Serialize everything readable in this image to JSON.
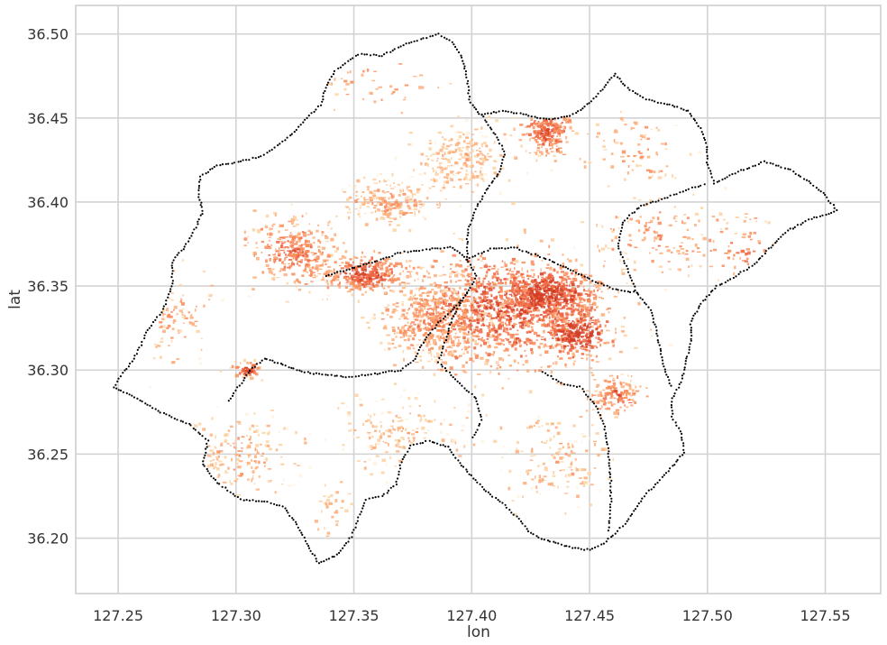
{
  "chart_data": {
    "type": "scatter",
    "title": "",
    "xlabel": "lon",
    "ylabel": "lat",
    "xlim": [
      127.232,
      127.5735
    ],
    "ylim": [
      36.167,
      36.517
    ],
    "grid": true,
    "legend": "none",
    "x_ticks": [
      {
        "value": 127.25,
        "label": "127.25"
      },
      {
        "value": 127.3,
        "label": "127.30"
      },
      {
        "value": 127.35,
        "label": "127.35"
      },
      {
        "value": 127.4,
        "label": "127.40"
      },
      {
        "value": 127.45,
        "label": "127.45"
      },
      {
        "value": 127.5,
        "label": "127.50"
      },
      {
        "value": 127.55,
        "label": "127.55"
      }
    ],
    "y_ticks": [
      {
        "value": 36.2,
        "label": "36.20"
      },
      {
        "value": 36.25,
        "label": "36.25"
      },
      {
        "value": 36.3,
        "label": "36.30"
      },
      {
        "value": 36.35,
        "label": "36.35"
      },
      {
        "value": 36.4,
        "label": "36.40"
      },
      {
        "value": 36.45,
        "label": "36.45"
      },
      {
        "value": 36.5,
        "label": "36.50"
      }
    ],
    "boundary": {
      "color": "#000000",
      "outline": [
        [
          127.386,
          36.5
        ],
        [
          127.372,
          36.494
        ],
        [
          127.362,
          36.487
        ],
        [
          127.352,
          36.488
        ],
        [
          127.342,
          36.478
        ],
        [
          127.338,
          36.468
        ],
        [
          127.336,
          36.458
        ],
        [
          127.33,
          36.45
        ],
        [
          127.322,
          36.438
        ],
        [
          127.312,
          36.428
        ],
        [
          127.302,
          36.424
        ],
        [
          127.292,
          36.422
        ],
        [
          127.285,
          36.415
        ],
        [
          127.284,
          36.405
        ],
        [
          127.286,
          36.395
        ],
        [
          127.283,
          36.385
        ],
        [
          127.279,
          36.375
        ],
        [
          127.273,
          36.364
        ],
        [
          127.273,
          36.35
        ],
        [
          127.269,
          36.336
        ],
        [
          127.262,
          36.322
        ],
        [
          127.258,
          36.31
        ],
        [
          127.252,
          36.298
        ],
        [
          127.248,
          36.29
        ],
        [
          127.258,
          36.283
        ],
        [
          127.268,
          36.275
        ],
        [
          127.28,
          36.268
        ],
        [
          127.288,
          36.258
        ],
        [
          127.286,
          36.244
        ],
        [
          127.292,
          36.233
        ],
        [
          127.302,
          36.223
        ],
        [
          127.312,
          36.222
        ],
        [
          127.32,
          36.219
        ],
        [
          127.326,
          36.208
        ],
        [
          127.33,
          36.197
        ],
        [
          127.335,
          36.185
        ],
        [
          127.343,
          36.19
        ],
        [
          127.349,
          36.201
        ],
        [
          127.352,
          36.212
        ],
        [
          127.355,
          36.223
        ],
        [
          127.362,
          36.225
        ],
        [
          127.368,
          36.232
        ],
        [
          127.37,
          36.245
        ],
        [
          127.374,
          36.255
        ],
        [
          127.382,
          36.258
        ],
        [
          127.39,
          36.254
        ],
        [
          127.394,
          36.246
        ],
        [
          127.4,
          36.237
        ],
        [
          127.406,
          36.228
        ],
        [
          127.412,
          36.222
        ],
        [
          127.419,
          36.213
        ],
        [
          127.425,
          36.203
        ],
        [
          127.431,
          36.199
        ],
        [
          127.438,
          36.196
        ],
        [
          127.444,
          36.194
        ],
        [
          127.45,
          36.193
        ],
        [
          127.456,
          36.197
        ],
        [
          127.461,
          36.203
        ],
        [
          127.466,
          36.21
        ],
        [
          127.47,
          36.219
        ],
        [
          127.475,
          36.228
        ],
        [
          127.481,
          36.236
        ],
        [
          127.486,
          36.244
        ],
        [
          127.49,
          36.251
        ],
        [
          127.489,
          36.262
        ],
        [
          127.485,
          36.272
        ],
        [
          127.485,
          36.283
        ],
        [
          127.489,
          36.293
        ],
        [
          127.491,
          36.305
        ],
        [
          127.493,
          36.317
        ],
        [
          127.493,
          36.329
        ],
        [
          127.498,
          36.341
        ],
        [
          127.504,
          36.35
        ],
        [
          127.512,
          36.356
        ],
        [
          127.52,
          36.363
        ],
        [
          127.526,
          36.372
        ],
        [
          127.534,
          36.383
        ],
        [
          127.544,
          36.39
        ],
        [
          127.555,
          36.395
        ],
        [
          127.55,
          36.404
        ],
        [
          127.543,
          36.412
        ],
        [
          127.534,
          36.42
        ],
        [
          127.524,
          36.424
        ],
        [
          127.513,
          36.418
        ],
        [
          127.503,
          36.411
        ],
        [
          127.5,
          36.422
        ],
        [
          127.5,
          36.433
        ],
        [
          127.497,
          36.444
        ],
        [
          127.492,
          36.454
        ],
        [
          127.484,
          36.458
        ],
        [
          127.474,
          36.461
        ],
        [
          127.466,
          36.468
        ],
        [
          127.461,
          36.476
        ],
        [
          127.457,
          36.47
        ],
        [
          127.451,
          36.46
        ],
        [
          127.443,
          36.452
        ],
        [
          127.433,
          36.449
        ],
        [
          127.423,
          36.452
        ],
        [
          127.413,
          36.454
        ],
        [
          127.403,
          36.452
        ],
        [
          127.399,
          36.461
        ],
        [
          127.398,
          36.474
        ],
        [
          127.396,
          36.486
        ],
        [
          127.392,
          36.495
        ],
        [
          127.386,
          36.5
        ]
      ],
      "inner_lines": [
        [
          [
            127.338,
            36.356
          ],
          [
            127.348,
            36.36
          ],
          [
            127.36,
            36.365
          ],
          [
            127.37,
            36.37
          ],
          [
            127.382,
            36.372
          ],
          [
            127.392,
            36.373
          ],
          [
            127.398,
            36.366
          ],
          [
            127.402,
            36.356
          ],
          [
            127.398,
            36.346
          ],
          [
            127.392,
            36.336
          ],
          [
            127.386,
            36.328
          ],
          [
            127.38,
            36.318
          ],
          [
            127.376,
            36.307
          ],
          [
            127.37,
            36.3
          ],
          [
            127.36,
            36.298
          ],
          [
            127.348,
            36.296
          ],
          [
            127.338,
            36.297
          ],
          [
            127.328,
            36.299
          ],
          [
            127.32,
            36.303
          ],
          [
            127.312,
            36.307
          ],
          [
            127.306,
            36.3
          ],
          [
            127.3,
            36.288
          ],
          [
            127.296,
            36.28
          ]
        ],
        [
          [
            127.398,
            36.366
          ],
          [
            127.408,
            36.372
          ],
          [
            127.418,
            36.373
          ],
          [
            127.428,
            36.368
          ],
          [
            127.44,
            36.361
          ],
          [
            127.45,
            36.354
          ],
          [
            127.461,
            36.348
          ],
          [
            127.47,
            36.346
          ]
        ],
        [
          [
            127.398,
            36.346
          ],
          [
            127.392,
            36.332
          ],
          [
            127.389,
            36.318
          ],
          [
            127.386,
            36.305
          ],
          [
            127.394,
            36.293
          ],
          [
            127.402,
            36.283
          ],
          [
            127.404,
            36.27
          ],
          [
            127.4,
            36.258
          ]
        ],
        [
          [
            127.404,
            36.452
          ],
          [
            127.41,
            36.44
          ],
          [
            127.414,
            36.43
          ],
          [
            127.412,
            36.418
          ],
          [
            127.406,
            36.407
          ],
          [
            127.401,
            36.394
          ],
          [
            127.398,
            36.38
          ],
          [
            127.398,
            36.366
          ]
        ],
        [
          [
            127.43,
            36.299
          ],
          [
            127.438,
            36.292
          ],
          [
            127.446,
            36.29
          ],
          [
            127.452,
            36.28
          ],
          [
            127.456,
            36.268
          ],
          [
            127.458,
            36.252
          ],
          [
            127.459,
            36.236
          ],
          [
            127.459,
            36.218
          ],
          [
            127.458,
            36.203
          ]
        ],
        [
          [
            127.47,
            36.346
          ],
          [
            127.476,
            36.336
          ],
          [
            127.479,
            36.32
          ],
          [
            127.481,
            36.304
          ],
          [
            127.485,
            36.289
          ]
        ],
        [
          [
            127.47,
            36.346
          ],
          [
            127.466,
            36.36
          ],
          [
            127.462,
            36.374
          ],
          [
            127.464,
            36.388
          ],
          [
            127.472,
            36.398
          ],
          [
            127.482,
            36.402
          ],
          [
            127.492,
            36.408
          ],
          [
            127.5,
            36.411
          ]
        ]
      ]
    },
    "density_points": {
      "color_scale": [
        "#fff1e0",
        "#fdd2a5",
        "#fdae7b",
        "#f98c5a",
        "#ee6541",
        "#d43d23"
      ],
      "clusters": [
        {
          "lon": 127.415,
          "lat": 36.335,
          "spread_lon": 0.038,
          "spread_lat": 0.03,
          "count": 1100,
          "intensity": 0.78
        },
        {
          "lon": 127.432,
          "lat": 36.345,
          "spread_lon": 0.018,
          "spread_lat": 0.014,
          "count": 500,
          "intensity": 0.9
        },
        {
          "lon": 127.445,
          "lat": 36.322,
          "spread_lon": 0.012,
          "spread_lat": 0.012,
          "count": 260,
          "intensity": 0.95
        },
        {
          "lon": 127.385,
          "lat": 36.33,
          "spread_lon": 0.02,
          "spread_lat": 0.022,
          "count": 480,
          "intensity": 0.55
        },
        {
          "lon": 127.355,
          "lat": 36.357,
          "spread_lon": 0.015,
          "spread_lat": 0.01,
          "count": 330,
          "intensity": 0.78
        },
        {
          "lon": 127.325,
          "lat": 36.37,
          "spread_lon": 0.018,
          "spread_lat": 0.018,
          "count": 320,
          "intensity": 0.62
        },
        {
          "lon": 127.432,
          "lat": 36.442,
          "spread_lon": 0.01,
          "spread_lat": 0.012,
          "count": 230,
          "intensity": 0.72
        },
        {
          "lon": 127.395,
          "lat": 36.425,
          "spread_lon": 0.02,
          "spread_lat": 0.018,
          "count": 260,
          "intensity": 0.35
        },
        {
          "lon": 127.365,
          "lat": 36.4,
          "spread_lon": 0.018,
          "spread_lat": 0.012,
          "count": 200,
          "intensity": 0.45
        },
        {
          "lon": 127.462,
          "lat": 36.285,
          "spread_lon": 0.01,
          "spread_lat": 0.01,
          "count": 140,
          "intensity": 0.65
        },
        {
          "lon": 127.305,
          "lat": 36.3,
          "spread_lon": 0.005,
          "spread_lat": 0.004,
          "count": 60,
          "intensity": 0.8
        },
        {
          "lon": 127.3,
          "lat": 36.25,
          "spread_lon": 0.022,
          "spread_lat": 0.022,
          "count": 170,
          "intensity": 0.4
        },
        {
          "lon": 127.37,
          "lat": 36.26,
          "spread_lon": 0.025,
          "spread_lat": 0.022,
          "count": 170,
          "intensity": 0.35
        },
        {
          "lon": 127.435,
          "lat": 36.245,
          "spread_lon": 0.022,
          "spread_lat": 0.025,
          "count": 150,
          "intensity": 0.38
        },
        {
          "lon": 127.48,
          "lat": 36.38,
          "spread_lon": 0.025,
          "spread_lat": 0.02,
          "count": 130,
          "intensity": 0.55
        },
        {
          "lon": 127.515,
          "lat": 36.37,
          "spread_lon": 0.015,
          "spread_lat": 0.018,
          "count": 50,
          "intensity": 0.6
        },
        {
          "lon": 127.47,
          "lat": 36.43,
          "spread_lon": 0.018,
          "spread_lat": 0.02,
          "count": 80,
          "intensity": 0.45
        },
        {
          "lon": 127.36,
          "lat": 36.47,
          "spread_lon": 0.02,
          "spread_lat": 0.015,
          "count": 40,
          "intensity": 0.55
        },
        {
          "lon": 127.275,
          "lat": 36.33,
          "spread_lon": 0.015,
          "spread_lat": 0.025,
          "count": 90,
          "intensity": 0.45
        },
        {
          "lon": 127.34,
          "lat": 36.215,
          "spread_lon": 0.008,
          "spread_lat": 0.015,
          "count": 35,
          "intensity": 0.4
        }
      ]
    }
  }
}
